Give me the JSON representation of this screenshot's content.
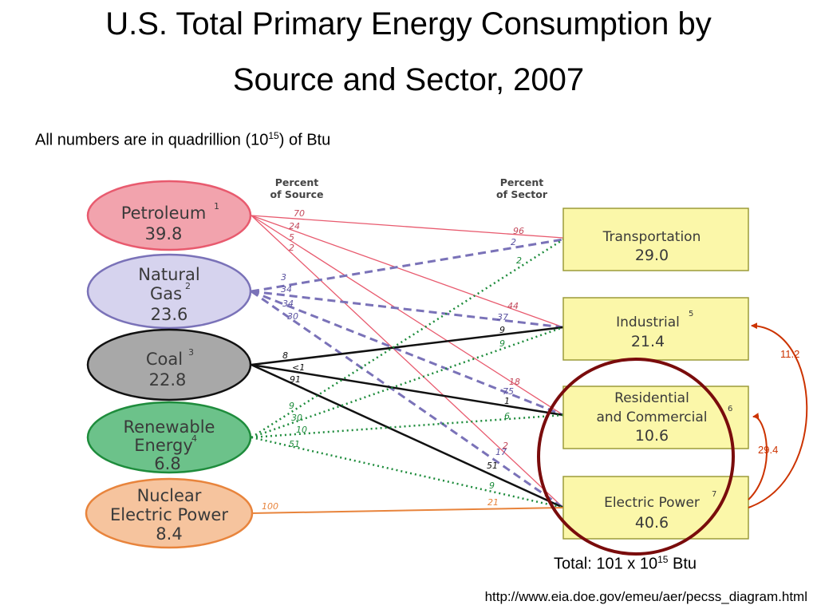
{
  "title": {
    "line1": "U.S. Total Primary Energy Consumption by",
    "line2": "Source and Sector, 2007"
  },
  "note": {
    "prefix": "All numbers are in quadrillion (10",
    "exponent": "15",
    "suffix": ") of Btu"
  },
  "headers": {
    "left_line1": "Percent",
    "left_line2": "of Source",
    "right_line1": "Percent",
    "right_line2": "of Sector"
  },
  "sources": {
    "petroleum": {
      "line1": "Petroleum",
      "sup": "1",
      "value": "39.8"
    },
    "natural_gas": {
      "line1": "Natural",
      "line2": "Gas",
      "sup": "2",
      "value": "23.6"
    },
    "coal": {
      "line1": "Coal",
      "sup": "3",
      "value": "22.8"
    },
    "renewable": {
      "line1": "Renewable",
      "line2": "Energy",
      "sup": "4",
      "value": "6.8"
    },
    "nuclear": {
      "line1": "Nuclear",
      "line2": "Electric Power",
      "value": "8.4"
    }
  },
  "sectors": {
    "transportation": {
      "line1": "Transportation",
      "value": "29.0"
    },
    "industrial": {
      "line1": "Industrial",
      "sup": "5",
      "value": "21.4"
    },
    "residential": {
      "line1": "Residential",
      "line2": "and Commercial",
      "sup": "6",
      "value": "10.6"
    },
    "electric": {
      "line1": "Electric Power",
      "sup": "7",
      "value": "40.6"
    }
  },
  "flow_labels": {
    "pet_src": [
      "70",
      "24",
      "5",
      "2"
    ],
    "gas_src": [
      "3",
      "34",
      "34",
      "30"
    ],
    "coal_src": [
      "8",
      "<1",
      "91"
    ],
    "ren_src": [
      "9",
      "30",
      "10",
      "51"
    ],
    "nuc_src": "100",
    "trans": [
      "96",
      "2",
      "2"
    ],
    "ind": [
      "44",
      "37",
      "9",
      "9"
    ],
    "res": [
      "18",
      "75",
      "1",
      "6"
    ],
    "elec": [
      "2",
      "17",
      "51",
      "9",
      "21"
    ]
  },
  "electricity_flows": {
    "to_industrial": "11.2",
    "to_residential": "29.4"
  },
  "total": {
    "prefix": "Total: 101 x 10",
    "exponent": "15",
    "suffix": " Btu"
  },
  "source_url": "http://www.eia.doe.gov/emeu/aer/pecss_diagram.html",
  "colors": {
    "petroleum": "#e85a6e",
    "petroleum_fill": "#f2a3ad",
    "gas": "#7a72b8",
    "gas_fill": "#d6d3ee",
    "coal": "#111111",
    "coal_fill": "#a8a8a8",
    "renewable": "#1e8c3c",
    "renewable_fill": "#6cc28a",
    "nuclear": "#e8843c",
    "nuclear_fill": "#f6c49e",
    "sector_fill": "#fbf7a9",
    "sector_stroke": "#9c9c3a",
    "highlight_circle": "#7a0c0c",
    "electricity_arrow": "#cc3300"
  }
}
